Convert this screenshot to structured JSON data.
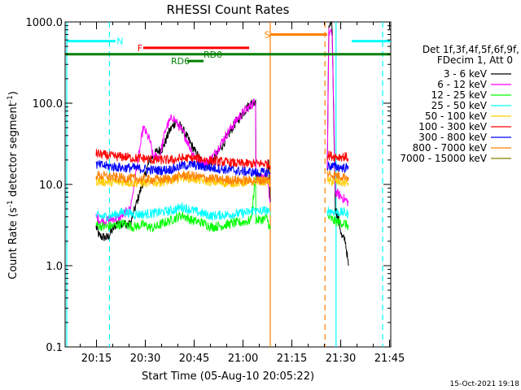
{
  "chart_data": {
    "type": "line",
    "title": "RHESSI Count Rates",
    "xlabel": "Start Time (05-Aug-10 20:05:22)",
    "ylabel": "Count Rate (s",
    "ylabel_sup": "-1",
    "ylabel_rest": " detector segment",
    "ylabel_sup2": "-1",
    "ylabel_end": ")",
    "x_unit": "minutes after 20:05:22",
    "xlim": [
      0,
      100
    ],
    "ylim": [
      0.1,
      1000
    ],
    "y_scale": "log",
    "x_ticks": [
      {
        "value": 9.63,
        "label": "20:15"
      },
      {
        "value": 24.63,
        "label": "20:30"
      },
      {
        "value": 39.63,
        "label": "20:45"
      },
      {
        "value": 54.63,
        "label": "21:00"
      },
      {
        "value": 69.63,
        "label": "21:15"
      },
      {
        "value": 84.63,
        "label": "21:30"
      },
      {
        "value": 99.63,
        "label": "21:45"
      }
    ],
    "y_ticks": [
      {
        "value": 0.1,
        "label": "0.1"
      },
      {
        "value": 1,
        "label": "1.0"
      },
      {
        "value": 10,
        "label": "10.0"
      },
      {
        "value": 100,
        "label": "100.0"
      },
      {
        "value": 1000,
        "label": "1000.0"
      }
    ],
    "legend_header": [
      "Det 1f,3f,4f,5f,6f,9f,",
      "FDecim 1, Att 0"
    ],
    "legend_position": "right",
    "segments": [
      [
        0.5,
        63.0
      ],
      [
        80.5,
        87.0
      ]
    ],
    "series": [
      {
        "name": "3 - 6 keV",
        "color": "#000000",
        "points": [
          [
            9.5,
            3.0
          ],
          [
            10.5,
            2.3
          ],
          [
            13,
            2.2
          ],
          [
            16,
            3.4
          ],
          [
            20,
            3.2
          ],
          [
            22,
            6
          ],
          [
            24,
            11
          ],
          [
            26,
            20
          ],
          [
            28,
            25
          ],
          [
            30,
            28
          ],
          [
            32,
            45
          ],
          [
            34,
            60
          ],
          [
            36,
            48
          ],
          [
            38,
            35
          ],
          [
            40,
            25
          ],
          [
            42,
            19
          ],
          [
            44,
            17
          ],
          [
            46,
            21
          ],
          [
            48,
            29
          ],
          [
            50,
            40
          ],
          [
            52,
            55
          ],
          [
            54,
            70
          ],
          [
            56,
            90
          ],
          [
            58.5,
            110
          ],
          [
            58.6,
            12
          ],
          [
            62,
            12
          ],
          [
            62.5,
            20
          ],
          [
            63,
            6
          ],
          [
            80.5,
            15
          ],
          [
            81,
            900
          ],
          [
            82,
            880
          ],
          [
            83,
            5
          ],
          [
            84,
            3.8
          ],
          [
            85,
            2.2
          ],
          [
            86,
            2.1
          ],
          [
            87,
            1.0
          ]
        ]
      },
      {
        "name": "6 - 12 keV",
        "color": "#ff00ff",
        "points": [
          [
            9.5,
            4
          ],
          [
            11,
            3.5
          ],
          [
            14,
            3.7
          ],
          [
            17,
            4
          ],
          [
            20,
            5
          ],
          [
            22,
            16
          ],
          [
            24,
            50
          ],
          [
            26,
            35
          ],
          [
            27,
            22
          ],
          [
            29,
            22
          ],
          [
            31,
            50
          ],
          [
            33,
            68
          ],
          [
            35,
            52
          ],
          [
            37,
            38
          ],
          [
            39,
            25
          ],
          [
            41,
            19
          ],
          [
            43,
            18
          ],
          [
            45,
            21
          ],
          [
            47,
            28
          ],
          [
            49,
            38
          ],
          [
            51,
            50
          ],
          [
            53,
            65
          ],
          [
            55,
            80
          ],
          [
            58.5,
            105
          ],
          [
            58.6,
            12
          ],
          [
            62,
            12
          ],
          [
            63,
            6
          ],
          [
            80.5,
            15
          ],
          [
            81,
            750
          ],
          [
            82,
            700
          ],
          [
            83,
            8
          ],
          [
            85,
            7
          ],
          [
            87,
            6
          ]
        ]
      },
      {
        "name": "12 - 25 keV",
        "color": "#00ff00",
        "points": [
          [
            9.5,
            3.2
          ],
          [
            12,
            3.0
          ],
          [
            15,
            3.1
          ],
          [
            18,
            3.3
          ],
          [
            21,
            3.0
          ],
          [
            24,
            3.2
          ],
          [
            27,
            2.9
          ],
          [
            30,
            3.3
          ],
          [
            33,
            3.7
          ],
          [
            36,
            4.2
          ],
          [
            39,
            3.6
          ],
          [
            42,
            3.4
          ],
          [
            45,
            3.0
          ],
          [
            48,
            3.1
          ],
          [
            51,
            3.3
          ],
          [
            54,
            3.4
          ],
          [
            57,
            3.6
          ],
          [
            58.5,
            12
          ],
          [
            58.6,
            3.6
          ],
          [
            62,
            3.8
          ],
          [
            63,
            2.8
          ],
          [
            80.5,
            4
          ],
          [
            83,
            3.5
          ],
          [
            86,
            3.3
          ],
          [
            87,
            3.0
          ]
        ]
      },
      {
        "name": "25 - 50 keV",
        "color": "#00ffff",
        "points": [
          [
            9.5,
            4.1
          ],
          [
            12,
            4.0
          ],
          [
            15,
            4.2
          ],
          [
            18,
            4.6
          ],
          [
            21,
            4.3
          ],
          [
            24,
            4.3
          ],
          [
            27,
            4.4
          ],
          [
            30,
            4.6
          ],
          [
            33,
            4.8
          ],
          [
            36,
            5.3
          ],
          [
            39,
            4.8
          ],
          [
            42,
            4.4
          ],
          [
            45,
            4.1
          ],
          [
            48,
            4.2
          ],
          [
            51,
            4.3
          ],
          [
            54,
            4.4
          ],
          [
            57,
            4.6
          ],
          [
            58.5,
            5
          ],
          [
            58.6,
            4.6
          ],
          [
            62,
            4.8
          ],
          [
            63,
            4.2
          ],
          [
            80.5,
            4.8
          ],
          [
            83,
            4.6
          ],
          [
            86,
            4.5
          ],
          [
            87,
            4.3
          ]
        ]
      },
      {
        "name": "50 - 100 keV",
        "color": "#ffcc00",
        "points": [
          [
            9.5,
            11
          ],
          [
            12,
            10.8
          ],
          [
            15,
            10.6
          ],
          [
            18,
            10.8
          ],
          [
            21,
            10.5
          ],
          [
            24,
            10.5
          ],
          [
            27,
            10.6
          ],
          [
            30,
            10.8
          ],
          [
            33,
            11.2
          ],
          [
            36,
            12.5
          ],
          [
            39,
            11.8
          ],
          [
            42,
            11.2
          ],
          [
            45,
            10.8
          ],
          [
            48,
            10.5
          ],
          [
            51,
            10.6
          ],
          [
            54,
            10.5
          ],
          [
            57,
            10.8
          ],
          [
            58.5,
            11
          ],
          [
            62,
            11
          ],
          [
            63,
            10.5
          ],
          [
            80.5,
            11
          ],
          [
            83,
            10.8
          ],
          [
            86,
            10.5
          ],
          [
            87,
            10.3
          ]
        ]
      },
      {
        "name": "100 - 300 keV",
        "color": "#ff0000",
        "points": [
          [
            9.5,
            24
          ],
          [
            12,
            23
          ],
          [
            15,
            22
          ],
          [
            18,
            22
          ],
          [
            21,
            21
          ],
          [
            24,
            21
          ],
          [
            27,
            20
          ],
          [
            30,
            20
          ],
          [
            33,
            20
          ],
          [
            36,
            21
          ],
          [
            39,
            21
          ],
          [
            42,
            20.5
          ],
          [
            45,
            19.5
          ],
          [
            48,
            19
          ],
          [
            51,
            18.5
          ],
          [
            54,
            18
          ],
          [
            57,
            18
          ],
          [
            58.5,
            18
          ],
          [
            62,
            18
          ],
          [
            63,
            17
          ],
          [
            80.5,
            23
          ],
          [
            83,
            22
          ],
          [
            86,
            22
          ],
          [
            87,
            21
          ]
        ]
      },
      {
        "name": "300 - 800 keV",
        "color": "#0000ff",
        "points": [
          [
            9.5,
            17.5
          ],
          [
            12,
            17
          ],
          [
            15,
            16.5
          ],
          [
            18,
            16
          ],
          [
            21,
            16
          ],
          [
            24,
            15.5
          ],
          [
            27,
            15
          ],
          [
            30,
            15
          ],
          [
            33,
            15.5
          ],
          [
            36,
            17
          ],
          [
            39,
            17.5
          ],
          [
            42,
            16.5
          ],
          [
            45,
            16
          ],
          [
            48,
            15.5
          ],
          [
            51,
            15
          ],
          [
            54,
            14.5
          ],
          [
            57,
            14.2
          ],
          [
            58.5,
            14
          ],
          [
            62,
            14
          ],
          [
            63,
            13.5
          ],
          [
            80.5,
            17
          ],
          [
            83,
            16.5
          ],
          [
            86,
            16
          ],
          [
            87,
            15.5
          ]
        ]
      },
      {
        "name": "800 - 7000 keV",
        "color": "#ff8000",
        "points": [
          [
            9.5,
            13
          ],
          [
            12,
            12.6
          ],
          [
            15,
            12.3
          ],
          [
            18,
            12
          ],
          [
            21,
            11.8
          ],
          [
            24,
            11.6
          ],
          [
            27,
            11.5
          ],
          [
            30,
            11.6
          ],
          [
            33,
            11.8
          ],
          [
            36,
            13
          ],
          [
            39,
            12.8
          ],
          [
            42,
            12.2
          ],
          [
            45,
            11.8
          ],
          [
            48,
            11.5
          ],
          [
            51,
            11.4
          ],
          [
            54,
            11.2
          ],
          [
            57,
            11.2
          ],
          [
            58.5,
            11.2
          ],
          [
            62,
            11.3
          ],
          [
            63,
            11
          ],
          [
            80.5,
            13.5
          ],
          [
            83,
            13
          ],
          [
            86,
            12.5
          ],
          [
            87,
            12.3
          ]
        ]
      },
      {
        "name": "7000 - 15000 keV",
        "color": "#808000",
        "points": []
      }
    ],
    "flags": [
      {
        "label": "N",
        "color": "#00ffff",
        "dash": false,
        "x0": 0.5,
        "x1": 15.5,
        "y": 580,
        "label_x": 15.8
      },
      {
        "label": "N",
        "color": "#00ffff",
        "dash": false,
        "x0": 88.0,
        "x1": 100.0,
        "y": 580,
        "label_x": null
      },
      {
        "label": "F",
        "color": "#ff0000",
        "dash": false,
        "x0": 24.0,
        "x1": 56.5,
        "y": 480,
        "label_x": 22.2
      },
      {
        "label": "S",
        "color": "#ff8000",
        "dash": false,
        "x0": 63.0,
        "x1": 80.5,
        "y": 700,
        "label_x": 61.2
      },
      {
        "label": "RD0",
        "color": "#008000",
        "dash": false,
        "x0": 0.0,
        "x1": 100.0,
        "y": 400,
        "label_x": 42.5
      },
      {
        "label": "RD6",
        "color": "#008000",
        "dash": false,
        "x0": 37.5,
        "x1": 42.5,
        "y": 330,
        "label_x": 32.5
      }
    ],
    "vlines": [
      {
        "x": 0.5,
        "color": "#00ffff",
        "dash": false
      },
      {
        "x": 13.6,
        "color": "#00ffff",
        "dash": true
      },
      {
        "x": 63.0,
        "color": "#ff8000",
        "dash": false
      },
      {
        "x": 79.8,
        "color": "#ff8000",
        "dash": true
      },
      {
        "x": 83.2,
        "color": "#00ffff",
        "dash": false
      },
      {
        "x": 97.5,
        "color": "#00ffff",
        "dash": true
      }
    ]
  },
  "footer": {
    "timestamp": "15-Oct-2021 19:18"
  }
}
